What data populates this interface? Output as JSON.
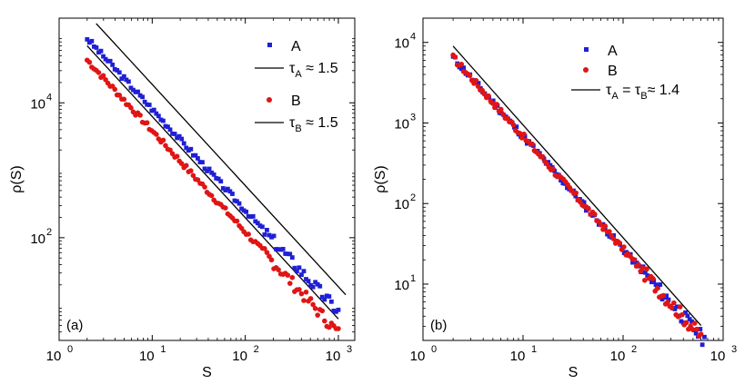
{
  "chart_data": [
    {
      "type": "scatter",
      "panel_label": "(a)",
      "xlabel": "S",
      "ylabel": "ρ(S)",
      "xscale": "log",
      "yscale": "log",
      "xlim": [
        1,
        1500
      ],
      "ylim": [
        3,
        180000
      ],
      "x_ticks": [
        {
          "value": 1,
          "base": "10",
          "exp": "0"
        },
        {
          "value": 10,
          "base": "10",
          "exp": "1"
        },
        {
          "value": 100,
          "base": "10",
          "exp": "2"
        },
        {
          "value": 1000,
          "base": "10",
          "exp": "3"
        }
      ],
      "y_ticks": [
        {
          "value": 100,
          "base": "10",
          "exp": "2"
        },
        {
          "value": 10000,
          "base": "10",
          "exp": "4"
        }
      ],
      "legend_position": "top-right",
      "series": [
        {
          "name": "A",
          "marker": "square",
          "color": "#1f1fd6",
          "s_min": 2,
          "s_max": 1000,
          "rho_at_2": 90000,
          "exponent": 1.5,
          "count": 110,
          "noise_seed": 3
        },
        {
          "name": "B",
          "marker": "circle",
          "color": "#e01515",
          "s_min": 2,
          "s_max": 1000,
          "rho_at_2": 43000,
          "exponent": 1.5,
          "count": 110,
          "noise_seed": 7
        }
      ],
      "fits": [
        {
          "label_sym": "τ",
          "label_sub": "A",
          "label_rest": "≈ 1.5",
          "x_start": 2.5,
          "x_end": 1200,
          "y_start": 150000,
          "exponent": 1.5,
          "color": "#000000"
        },
        {
          "label_sym": "τ",
          "label_sub": "B",
          "label_rest": "≈  1.5",
          "x_start": 2,
          "x_end": 1000,
          "y_start": 70000,
          "exponent": 1.5,
          "color": "#000000"
        }
      ]
    },
    {
      "type": "scatter",
      "panel_label": "(b)",
      "xlabel": "S",
      "ylabel": "ρ(S)",
      "xscale": "log",
      "yscale": "log",
      "xlim": [
        1,
        1000
      ],
      "ylim": [
        2,
        20000
      ],
      "x_ticks": [
        {
          "value": 1,
          "base": "10",
          "exp": "0"
        },
        {
          "value": 10,
          "base": "10",
          "exp": "1"
        },
        {
          "value": 100,
          "base": "10",
          "exp": "2"
        },
        {
          "value": 1000,
          "base": "10",
          "exp": "3"
        }
      ],
      "y_ticks": [
        {
          "value": 10,
          "base": "10",
          "exp": "1"
        },
        {
          "value": 100,
          "base": "10",
          "exp": "2"
        },
        {
          "value": 1000,
          "base": "10",
          "exp": "3"
        },
        {
          "value": 10000,
          "base": "10",
          "exp": "4"
        }
      ],
      "legend_position": "top-right",
      "series": [
        {
          "name": "A",
          "marker": "square",
          "color": "#1f1fd6",
          "s_min": 2,
          "s_max": 650,
          "rho_at_2": 6500,
          "exponent": 1.4,
          "count": 120,
          "noise_seed": 11
        },
        {
          "name": "B",
          "marker": "circle",
          "color": "#e01515",
          "s_min": 2,
          "s_max": 600,
          "rho_at_2": 6500,
          "exponent": 1.4,
          "count": 120,
          "noise_seed": 17
        }
      ],
      "fits": [
        {
          "label_sym": "τ",
          "label_sub": "A",
          "label_rest": " = τ",
          "label_sub2": "B",
          "label_rest2": "≈ 1.4",
          "x_start": 2,
          "x_end": 600,
          "y_start": 9000,
          "exponent": 1.4,
          "color": "#000000"
        }
      ]
    }
  ]
}
